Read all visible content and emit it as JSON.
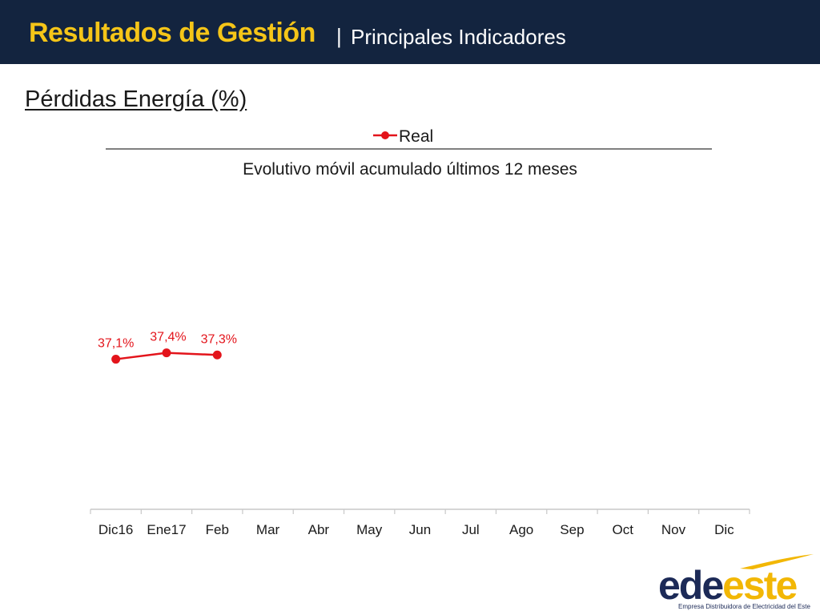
{
  "header": {
    "title": "Resultados de Gestión",
    "separator": "|",
    "subtitle": "Principales Indicadores"
  },
  "section_title": "Pérdidas Energía (%)",
  "colors": {
    "header_bg": "#13243f",
    "title_yellow": "#f5c518",
    "series_red": "#e3141b",
    "logo_navy": "#1c2a57",
    "logo_yellow": "#f2b705"
  },
  "chart_data": {
    "type": "line",
    "title": "Evolutivo móvil  acumulado últimos 12 meses",
    "legend": {
      "position": "top"
    },
    "categories": [
      "Dic16",
      "Ene17",
      "Feb",
      "Mar",
      "Abr",
      "May",
      "Jun",
      "Jul",
      "Ago",
      "Sep",
      "Oct",
      "Nov",
      "Dic"
    ],
    "series": [
      {
        "name": "Real",
        "color": "#e3141b",
        "values": [
          37.1,
          37.4,
          37.3,
          null,
          null,
          null,
          null,
          null,
          null,
          null,
          null,
          null,
          null
        ],
        "labels": [
          "37,1%",
          "37,4%",
          "37,3%",
          "",
          "",
          "",
          "",
          "",
          "",
          "",
          "",
          "",
          ""
        ]
      }
    ],
    "ylim": [
      30,
      45
    ],
    "grid": false
  },
  "logo": {
    "part1": "ede",
    "part2": "este",
    "tagline": "Empresa Distribuidora de Electricidad del Este",
    "icon": "swoosh-icon"
  }
}
